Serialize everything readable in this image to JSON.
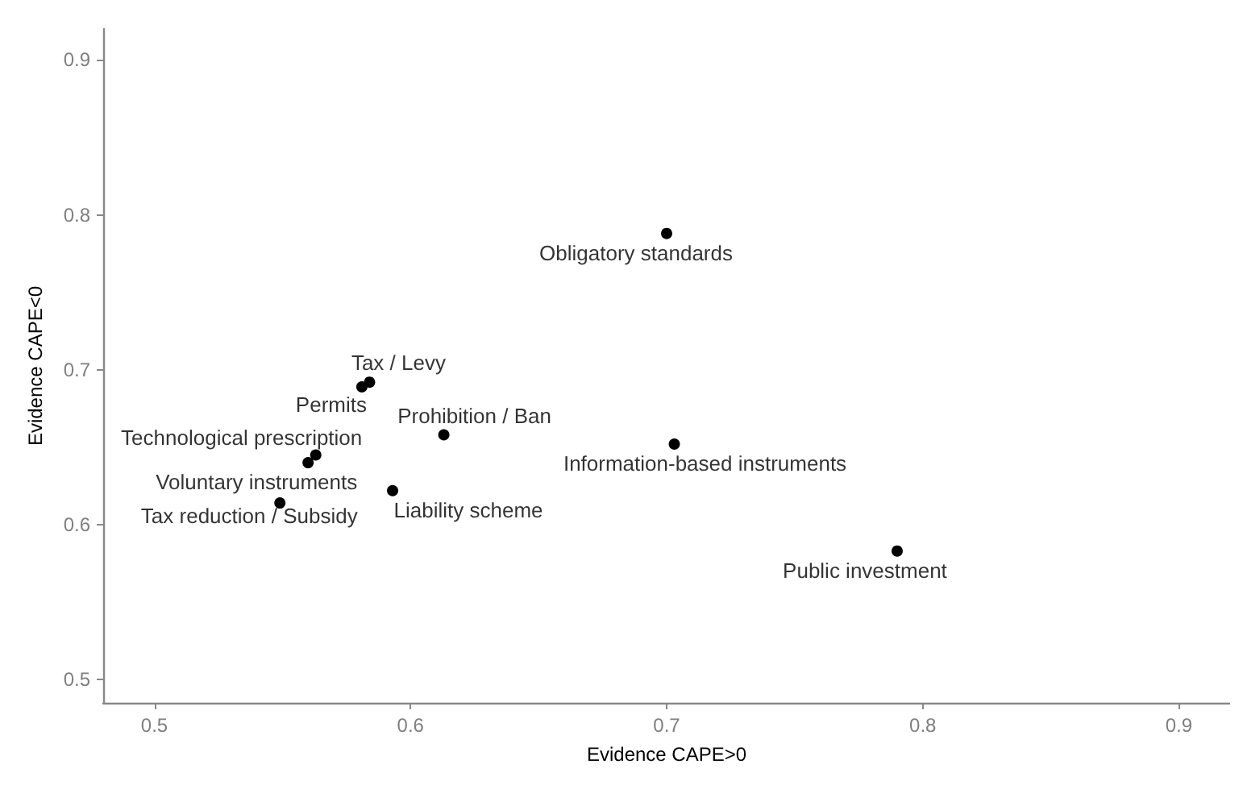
{
  "chart_data": {
    "type": "scatter",
    "xlabel": "Evidence CAPE>0",
    "ylabel": "Evidence CAPE<0",
    "series": [
      {
        "color": "#000000",
        "x": [
          0.7,
          0.703,
          0.79,
          0.584,
          0.581,
          0.613,
          0.563,
          0.56,
          0.593,
          0.549
        ],
        "values": [
          0.788,
          0.652,
          0.583,
          0.692,
          0.689,
          0.658,
          0.645,
          0.64,
          0.622,
          0.614
        ]
      }
    ],
    "annotations": [
      {
        "text": "Obligatory standards",
        "x": 0.7,
        "y": 0.788
      },
      {
        "text": "Information-based instruments",
        "x": 0.703,
        "y": 0.652
      },
      {
        "text": "Public investment",
        "x": 0.79,
        "y": 0.583
      },
      {
        "text": "Tax / Levy",
        "x": 0.584,
        "y": 0.692
      },
      {
        "text": "Permits",
        "x": 0.581,
        "y": 0.689
      },
      {
        "text": "Prohibition / Ban",
        "x": 0.613,
        "y": 0.658
      },
      {
        "text": "Technological prescription",
        "x": 0.563,
        "y": 0.645
      },
      {
        "text": "Voluntary instruments",
        "x": 0.56,
        "y": 0.64
      },
      {
        "text": "Liability scheme",
        "x": 0.593,
        "y": 0.622
      },
      {
        "text": "Tax reduction / Subsidy",
        "x": 0.549,
        "y": 0.614
      }
    ],
    "xlim": [
      0.48,
      0.92
    ],
    "ylim": [
      0.485,
      0.92
    ],
    "xticks": [
      0.5,
      0.6,
      0.7,
      0.8,
      0.9
    ],
    "yticks": [
      0.5,
      0.6,
      0.7,
      0.8,
      0.9
    ],
    "grid": false,
    "marker": "circle"
  }
}
